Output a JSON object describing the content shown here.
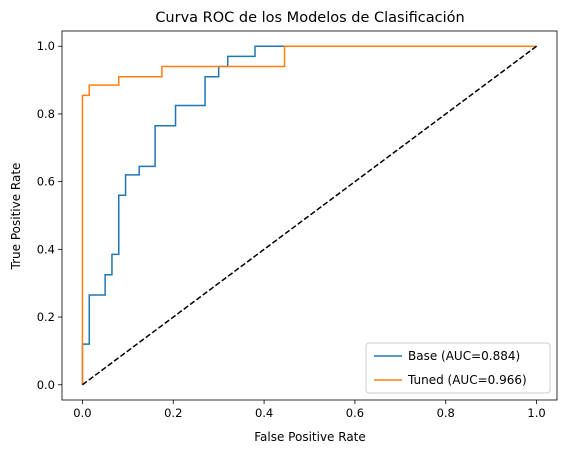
{
  "chart_data": {
    "type": "line",
    "title": "Curva ROC de los Modelos de Clasificación",
    "xlabel": "False Positive Rate",
    "ylabel": "True Positive Rate",
    "xlim": [
      -0.045,
      1.045
    ],
    "ylim": [
      -0.045,
      1.045
    ],
    "xticks": [
      "0.0",
      "0.2",
      "0.4",
      "0.6",
      "0.8",
      "1.0"
    ],
    "yticks": [
      "0.0",
      "0.2",
      "0.4",
      "0.6",
      "0.8",
      "1.0"
    ],
    "grid": false,
    "legend_position": "lower-right",
    "series": [
      {
        "name": "Base (AUC=0.884)",
        "color": "#1f77b4",
        "style": "step",
        "x": [
          0.0,
          0.0,
          0.015,
          0.015,
          0.05,
          0.05,
          0.065,
          0.065,
          0.08,
          0.08,
          0.095,
          0.095,
          0.125,
          0.125,
          0.16,
          0.16,
          0.205,
          0.205,
          0.27,
          0.27,
          0.3,
          0.3,
          0.32,
          0.32,
          0.38,
          0.38,
          0.44,
          1.0
        ],
        "y": [
          0.0,
          0.12,
          0.12,
          0.265,
          0.265,
          0.325,
          0.325,
          0.385,
          0.385,
          0.56,
          0.56,
          0.62,
          0.62,
          0.645,
          0.645,
          0.765,
          0.765,
          0.825,
          0.825,
          0.91,
          0.91,
          0.94,
          0.94,
          0.97,
          0.97,
          1.0,
          1.0,
          1.0
        ]
      },
      {
        "name": "Tuned (AUC=0.966)",
        "color": "#ff7f0e",
        "style": "step",
        "x": [
          0.0,
          0.0,
          0.015,
          0.015,
          0.08,
          0.08,
          0.175,
          0.175,
          0.445,
          0.445,
          1.0
        ],
        "y": [
          0.0,
          0.855,
          0.855,
          0.885,
          0.885,
          0.91,
          0.91,
          0.94,
          0.94,
          1.0,
          1.0
        ]
      },
      {
        "name": "",
        "color": "#000000",
        "style": "dashed",
        "x": [
          0.0,
          1.0
        ],
        "y": [
          0.0,
          1.0
        ]
      }
    ]
  }
}
